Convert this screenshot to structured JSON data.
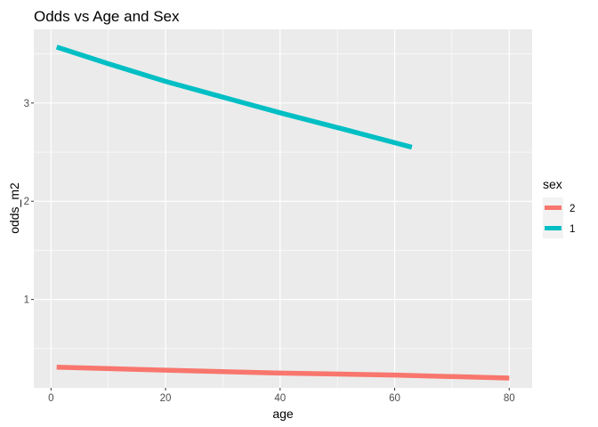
{
  "chart_data": {
    "type": "line",
    "title": "Odds vs Age and Sex",
    "xlabel": "age",
    "ylabel": "odds_m2",
    "xlim": [
      -3,
      84
    ],
    "ylim": [
      0.1,
      3.75
    ],
    "x_ticks": [
      0,
      20,
      40,
      60,
      80
    ],
    "y_ticks": [
      1,
      2,
      3
    ],
    "grid": true,
    "legend": {
      "title": "sex",
      "placement": "right"
    },
    "series": [
      {
        "name": "2",
        "color": "#F8766D",
        "x": [
          1,
          20,
          40,
          60,
          80
        ],
        "y": [
          0.31,
          0.28,
          0.25,
          0.23,
          0.2
        ]
      },
      {
        "name": "1",
        "color": "#00BFC4",
        "x": [
          1,
          10,
          20,
          30,
          40,
          50,
          63
        ],
        "y": [
          3.57,
          3.4,
          3.22,
          3.06,
          2.9,
          2.75,
          2.55
        ]
      }
    ]
  }
}
